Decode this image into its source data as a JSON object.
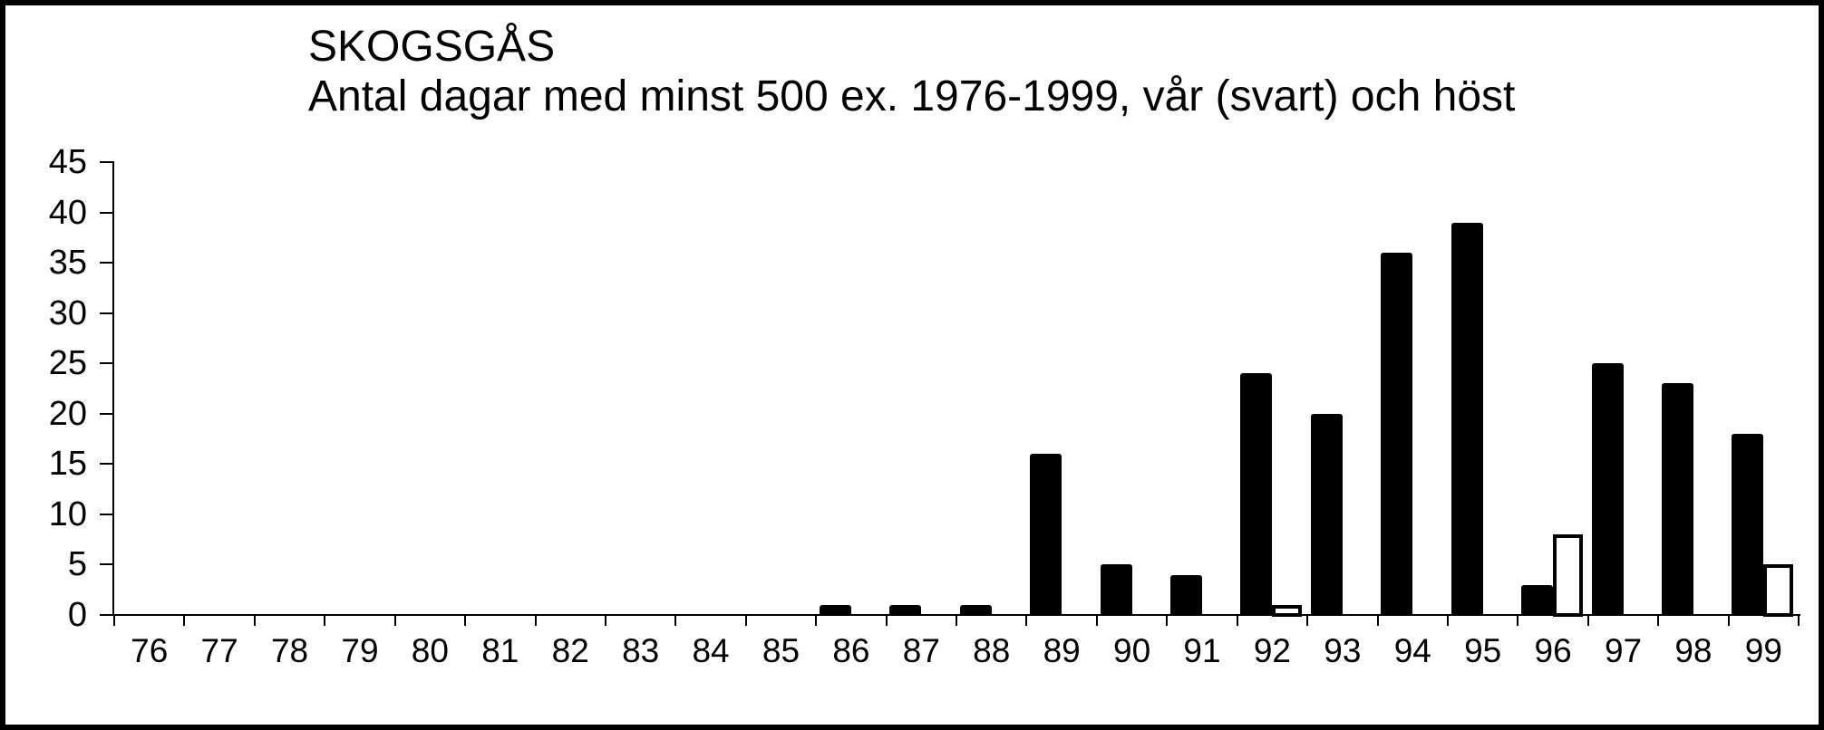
{
  "window": {
    "background": "#ffffff",
    "frame_border_color": "#000000"
  },
  "chart_data": {
    "type": "bar",
    "title": "SKOGSGÅS",
    "subtitle": "Antal dagar med minst 500 ex. 1976-1999, vår (svart) och höst",
    "categories": [
      "76",
      "77",
      "78",
      "79",
      "80",
      "81",
      "82",
      "83",
      "84",
      "85",
      "86",
      "87",
      "88",
      "89",
      "90",
      "91",
      "92",
      "93",
      "94",
      "95",
      "96",
      "97",
      "98",
      "99"
    ],
    "series": [
      {
        "name": "vår (svart)",
        "style": "solid",
        "color": "#000000",
        "values": [
          0,
          0,
          0,
          0,
          0,
          0,
          0,
          0,
          0,
          0,
          1,
          1,
          1,
          16,
          5,
          4,
          24,
          20,
          36,
          39,
          3,
          25,
          23,
          18
        ]
      },
      {
        "name": "höst",
        "style": "outlined-white",
        "color": "#ffffff",
        "outline_color": "#000000",
        "values": [
          0,
          0,
          0,
          0,
          0,
          0,
          0,
          0,
          0,
          0,
          0,
          0,
          0,
          0,
          0,
          0,
          1,
          0,
          0,
          0,
          8,
          0,
          0,
          5
        ]
      }
    ],
    "xlabel": "",
    "ylabel": "",
    "ylim": [
      0,
      45
    ],
    "yticks": [
      0,
      5,
      10,
      15,
      20,
      25,
      30,
      35,
      40,
      45
    ],
    "grid": false,
    "legend_position": "none"
  }
}
